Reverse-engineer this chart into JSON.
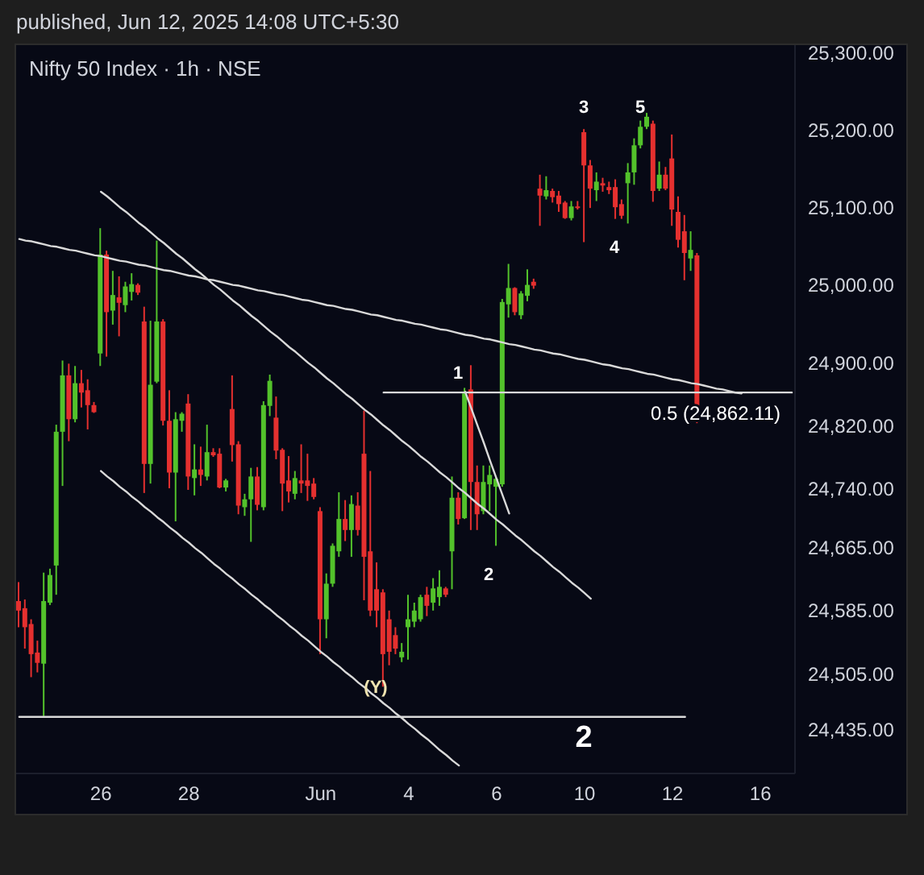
{
  "chart_data": {
    "type": "candlestick",
    "title": "Nifty 50 Index · 1h · NSE",
    "categories": [
      null,
      null,
      null,
      null,
      null,
      null,
      null,
      null,
      null,
      null,
      null,
      null,
      null,
      "26",
      null,
      null,
      null,
      null,
      null,
      null,
      null,
      null,
      null,
      null,
      null,
      null,
      null,
      "28",
      null,
      null,
      null,
      null,
      null,
      null,
      null,
      null,
      null,
      null,
      null,
      null,
      null,
      null,
      null,
      null,
      null,
      null,
      null,
      null,
      "Jun",
      null,
      null,
      null,
      null,
      null,
      null,
      null,
      null,
      null,
      null,
      null,
      null,
      null,
      "4",
      null,
      null,
      null,
      null,
      null,
      null,
      null,
      null,
      null,
      null,
      null,
      null,
      null,
      "6",
      null,
      null,
      null,
      null,
      null,
      null,
      null,
      null,
      null,
      null,
      null,
      null,
      null,
      "10",
      null,
      null,
      null,
      null,
      null,
      null,
      null,
      null,
      null,
      null,
      null,
      null,
      null,
      "12",
      null,
      null,
      null,
      null,
      null,
      null,
      null,
      null,
      null,
      null,
      null,
      null,
      null,
      "16",
      null,
      null,
      null,
      null,
      null
    ],
    "ohlc": [
      [
        24597,
        24621,
        24564,
        24585
      ],
      [
        24588,
        24599,
        24537,
        24564
      ],
      [
        24568,
        24574,
        24501,
        24530
      ],
      [
        24532,
        24547,
        24507,
        24519
      ],
      [
        24518,
        24633,
        24452,
        24597
      ],
      [
        24595,
        24638,
        24592,
        24630
      ],
      [
        24642,
        24821,
        24605,
        24812
      ],
      [
        24812,
        24903,
        24743,
        24884
      ],
      [
        24884,
        24899,
        24800,
        24828
      ],
      [
        24828,
        24896,
        24824,
        24874
      ],
      [
        24874,
        24891,
        24843,
        24862
      ],
      [
        24865,
        24879,
        24815,
        24846
      ],
      [
        24846,
        24850,
        24836,
        24837
      ],
      [
        24912,
        25073,
        24896,
        25039
      ],
      [
        25039,
        25044,
        24908,
        24965
      ],
      [
        24967,
        25018,
        24949,
        24987
      ],
      [
        24984,
        25011,
        24934,
        24977
      ],
      [
        24974,
        25004,
        24965,
        24998
      ],
      [
        24991,
        25015,
        24980,
        25001
      ],
      [
        25000,
        25002,
        24987,
        24990
      ],
      [
        24953,
        24972,
        24734,
        24771
      ],
      [
        24771,
        24954,
        24746,
        24872
      ],
      [
        24876,
        25057,
        24874,
        24953
      ],
      [
        24953,
        24956,
        24820,
        24826
      ],
      [
        24826,
        24865,
        24740,
        24760
      ],
      [
        24760,
        24837,
        24698,
        24828
      ],
      [
        24826,
        24837,
        24812,
        24835
      ],
      [
        24848,
        24860,
        24738,
        24755
      ],
      [
        24753,
        24796,
        24731,
        24764
      ],
      [
        24764,
        24793,
        24743,
        24757
      ],
      [
        24755,
        24821,
        24750,
        24786
      ],
      [
        24786,
        24791,
        24780,
        24782
      ],
      [
        24784,
        24791,
        24740,
        24741
      ],
      [
        24741,
        24752,
        24736,
        24750
      ],
      [
        24841,
        24884,
        24774,
        24795
      ],
      [
        24796,
        24800,
        24707,
        24718
      ],
      [
        24716,
        24733,
        24705,
        24726
      ],
      [
        24726,
        24766,
        24672,
        24755
      ],
      [
        24755,
        24767,
        24712,
        24719
      ],
      [
        24716,
        24851,
        24712,
        24846
      ],
      [
        24845,
        24885,
        24832,
        24877
      ],
      [
        24830,
        24857,
        24777,
        24788
      ],
      [
        24789,
        24791,
        24711,
        24746
      ],
      [
        24750,
        24781,
        24722,
        24736
      ],
      [
        24733,
        24762,
        24726,
        24753
      ],
      [
        24750,
        24796,
        24734,
        24746
      ],
      [
        24750,
        24784,
        24724,
        24743
      ],
      [
        24746,
        24753,
        24726,
        24729
      ],
      [
        24711,
        24716,
        24530,
        24574
      ],
      [
        24574,
        24632,
        24550,
        24619
      ],
      [
        24619,
        24670,
        24615,
        24667
      ],
      [
        24660,
        24735,
        24653,
        24701
      ],
      [
        24701,
        24725,
        24673,
        24687
      ],
      [
        24687,
        24731,
        24653,
        24720
      ],
      [
        24718,
        24735,
        24680,
        24687
      ],
      [
        24784,
        24839,
        24598,
        24653
      ],
      [
        24660,
        24762,
        24578,
        24585
      ],
      [
        24612,
        24646,
        24564,
        24585
      ],
      [
        24608,
        24612,
        24489,
        24530
      ],
      [
        24574,
        24585,
        24516,
        24533
      ],
      [
        24554,
        24564,
        24530,
        24537
      ],
      [
        24526,
        24544,
        24520,
        24533
      ],
      [
        24564,
        24605,
        24523,
        24574
      ],
      [
        24571,
        24595,
        24564,
        24585
      ],
      [
        24574,
        24605,
        24571,
        24602
      ],
      [
        24605,
        24615,
        24578,
        24591
      ],
      [
        24595,
        24626,
        24585,
        24613
      ],
      [
        24602,
        24636,
        24591,
        24615
      ],
      [
        24613,
        24615,
        24602,
        24605
      ],
      [
        24660,
        24755,
        24612,
        24728
      ],
      [
        24728,
        24735,
        24694,
        24701
      ],
      [
        24702,
        24868,
        24701,
        24861
      ],
      [
        24866,
        24897,
        24687,
        24748
      ],
      [
        24748,
        24769,
        24687,
        24707
      ],
      [
        24711,
        24769,
        24707,
        24748
      ],
      [
        24745,
        24769,
        24711,
        24757
      ],
      [
        24742,
        24755,
        24667,
        24752
      ],
      [
        24745,
        24982,
        24742,
        24978
      ],
      [
        24975,
        25027,
        24958,
        24996
      ],
      [
        24996,
        24997,
        24961,
        24965
      ],
      [
        24961,
        24992,
        24956,
        24989
      ],
      [
        24986,
        25020,
        24979,
        25000
      ],
      [
        25004,
        25008,
        24995,
        24999
      ],
      [
        25124,
        25142,
        25076,
        25115
      ],
      [
        25114,
        25140,
        25110,
        25122
      ],
      [
        25121,
        25124,
        25106,
        25113
      ],
      [
        25115,
        25121,
        25094,
        25104
      ],
      [
        25106,
        25108,
        25085,
        25086
      ],
      [
        25086,
        25108,
        25083,
        25101
      ],
      [
        25101,
        25108,
        25097,
        25099
      ],
      [
        25197,
        25201,
        25055,
        25154
      ],
      [
        25154,
        25161,
        25099,
        25124
      ],
      [
        25122,
        25145,
        25108,
        25133
      ],
      [
        25131,
        25138,
        25120,
        25128
      ],
      [
        25126,
        25133,
        25117,
        25122
      ],
      [
        25126,
        25136,
        25085,
        25100
      ],
      [
        25104,
        25110,
        25085,
        25089
      ],
      [
        25131,
        25157,
        25079,
        25145
      ],
      [
        25145,
        25189,
        25129,
        25180
      ],
      [
        25180,
        25212,
        25176,
        25204
      ],
      [
        25204,
        25222,
        25201,
        25217
      ],
      [
        25208,
        25212,
        25107,
        25121
      ],
      [
        25124,
        25159,
        25121,
        25142
      ],
      [
        25142,
        25152,
        25122,
        25124
      ],
      [
        25163,
        25194,
        25076,
        25097
      ],
      [
        25094,
        25114,
        25048,
        25058
      ],
      [
        25069,
        25090,
        25006,
        25041
      ],
      [
        25034,
        25069,
        25018,
        25045
      ],
      [
        25038,
        25041,
        24823,
        24844
      ],
      null,
      null,
      null,
      null,
      null,
      null,
      null,
      null,
      null,
      null,
      null,
      null,
      null,
      null,
      null
    ],
    "colors": [
      "#e5302f",
      "#e5302f",
      "#e5302f",
      "#e5302f",
      "#53c22b",
      "#53c22b",
      "#53c22b",
      "#53c22b",
      "#e5302f",
      "#53c22b",
      "#e5302f",
      "#e5302f",
      "#e5302f",
      "#53c22b",
      "#e5302f",
      "#53c22b",
      "#e5302f",
      "#53c22b",
      "#53c22b",
      "#e5302f",
      "#e5302f",
      "#53c22b",
      "#53c22b",
      "#e5302f",
      "#e5302f",
      "#53c22b",
      "#53c22b",
      "#e5302f",
      "#53c22b",
      "#e5302f",
      "#53c22b",
      "#e5302f",
      "#e5302f",
      "#53c22b",
      "#e5302f",
      "#e5302f",
      "#53c22b",
      "#53c22b",
      "#e5302f",
      "#53c22b",
      "#53c22b",
      "#e5302f",
      "#e5302f",
      "#e5302f",
      "#53c22b",
      "#e5302f",
      "#e5302f",
      "#e5302f",
      "#e5302f",
      "#53c22b",
      "#53c22b",
      "#53c22b",
      "#e5302f",
      "#53c22b",
      "#e5302f",
      "#e5302f",
      "#e5302f",
      "#e5302f",
      "#e5302f",
      "#e5302f",
      "#e5302f",
      "#53c22b",
      "#53c22b",
      "#53c22b",
      "#53c22b",
      "#e5302f",
      "#53c22b",
      "#53c22b",
      "#e5302f",
      "#53c22b",
      "#e5302f",
      "#53c22b",
      "#e5302f",
      "#e5302f",
      "#53c22b",
      "#53c22b",
      "#53c22b",
      "#53c22b",
      "#53c22b",
      "#e5302f",
      "#53c22b",
      "#53c22b",
      "#e5302f",
      "#e5302f",
      "#53c22b",
      "#e5302f",
      "#e5302f",
      "#e5302f",
      "#53c22b",
      "#e5302f",
      "#e5302f",
      "#e5302f",
      "#53c22b",
      "#e5302f",
      "#e5302f",
      "#e5302f",
      "#e5302f",
      "#53c22b",
      "#53c22b",
      "#53c22b",
      "#53c22b",
      "#e5302f",
      "#53c22b",
      "#e5302f",
      "#e5302f",
      "#e5302f",
      "#e5302f",
      "#53c22b",
      "#e5302f",
      null,
      null,
      null,
      null,
      null,
      null,
      null,
      null,
      null,
      null,
      null,
      null,
      null,
      null,
      null
    ],
    "series": [
      {
        "type": "line",
        "color": "#d9d9d9",
        "values": [
          25059,
          25057,
          25056,
          25054,
          25052,
          25050,
          25049,
          25047,
          25045,
          25044,
          25042,
          25040,
          25038,
          25037,
          25035,
          25033,
          25031,
          25030,
          25028,
          25026,
          25025,
          25023,
          25021,
          25019,
          25018,
          25016,
          25014,
          25012,
          25011,
          25009,
          25007,
          25006,
          25004,
          25002,
          25000,
          24999,
          24997,
          24995,
          24993,
          24992,
          24990,
          24988,
          24987,
          24985,
          24983,
          24981,
          24980,
          24978,
          24976,
          24974,
          24973,
          24971,
          24969,
          24968,
          24966,
          24964,
          24962,
          24961,
          24959,
          24957,
          24955,
          24954,
          24952,
          24950,
          24949,
          24947,
          24945,
          24943,
          24942,
          24940,
          24938,
          24936,
          24935,
          24933,
          24931,
          24930,
          24928,
          24926,
          24924,
          24923,
          24921,
          24919,
          24917,
          24916,
          24914,
          24912,
          24911,
          24909,
          24907,
          24905,
          24904,
          24902,
          24900,
          24898,
          24897,
          24895,
          24893,
          24892,
          24890,
          24888,
          24886,
          24885,
          24883,
          24881,
          24879,
          24878,
          24876,
          24874,
          24873,
          24871,
          24869,
          24867,
          24866,
          24864,
          24862,
          24861,
          null,
          null,
          null,
          null,
          null,
          null,
          null,
          null
        ]
      },
      {
        "type": "line",
        "color": "#d9d9d9",
        "values": [
          null,
          null,
          null,
          null,
          null,
          null,
          null,
          null,
          null,
          null,
          null,
          null,
          null,
          25120,
          25114,
          25107,
          25100,
          25094,
          25087,
          25080,
          25074,
          25067,
          25060,
          25054,
          25047,
          25040,
          25034,
          25027,
          25020,
          25014,
          25007,
          25000,
          24994,
          24987,
          24980,
          24974,
          24967,
          24960,
          24954,
          24947,
          24940,
          24934,
          24927,
          24920,
          24914,
          24907,
          24900,
          24894,
          24887,
          24880,
          24874,
          24867,
          24860,
          24854,
          24847,
          24840,
          24834,
          24827,
          24820,
          24814,
          24807,
          24800,
          24794,
          24787,
          24780,
          24774,
          24767,
          24760,
          24754,
          24747,
          24740,
          24734,
          24727,
          24720,
          24714,
          24707,
          24700,
          24694,
          24687,
          24680,
          24674,
          24667,
          24660,
          24654,
          24647,
          24640,
          24634,
          24627,
          24620,
          24614,
          24607,
          24600,
          null,
          null,
          null,
          null,
          null,
          null,
          null,
          null,
          null,
          null,
          null,
          null,
          null,
          null,
          null,
          null,
          null,
          null,
          null,
          null,
          null,
          null,
          null,
          null,
          null,
          null,
          null,
          null,
          null,
          null,
          null,
          null
        ]
      },
      {
        "type": "line",
        "color": "#d9d9d9",
        "values": [
          null,
          null,
          null,
          null,
          null,
          null,
          null,
          null,
          null,
          null,
          null,
          null,
          null,
          24762,
          24755,
          24749,
          24742,
          24736,
          24729,
          24723,
          24716,
          24710,
          24703,
          24697,
          24690,
          24684,
          24677,
          24671,
          24664,
          24658,
          24651,
          24644,
          24638,
          24631,
          24625,
          24618,
          24612,
          24605,
          24599,
          24592,
          24586,
          24579,
          24573,
          24566,
          24560,
          24553,
          24547,
          24540,
          24533,
          24527,
          24520,
          24514,
          24507,
          24501,
          24494,
          24488,
          24481,
          24475,
          24468,
          24462,
          24455,
          24449,
          24442,
          24436,
          24429,
          24423,
          24416,
          24409,
          24403,
          24396,
          24390,
          null,
          null,
          null,
          null,
          null,
          null,
          null,
          null,
          null,
          null,
          null,
          null,
          null,
          null,
          null,
          null,
          null,
          null,
          null,
          null,
          null,
          null,
          null,
          null,
          null,
          null,
          null,
          null,
          null,
          null,
          null,
          null,
          null,
          null,
          null,
          null,
          null,
          null,
          null,
          null,
          null,
          null,
          null,
          null,
          null,
          null,
          null,
          null,
          null,
          null,
          null,
          null,
          null
        ]
      },
      {
        "type": "line",
        "color": "#d9d9d9",
        "values": [
          null,
          null,
          null,
          null,
          null,
          null,
          null,
          null,
          null,
          null,
          null,
          null,
          null,
          null,
          null,
          null,
          null,
          null,
          null,
          null,
          null,
          null,
          null,
          null,
          null,
          null,
          null,
          null,
          null,
          null,
          null,
          null,
          null,
          null,
          null,
          null,
          null,
          null,
          null,
          null,
          null,
          null,
          null,
          null,
          null,
          null,
          null,
          null,
          null,
          null,
          null,
          null,
          null,
          null,
          null,
          null,
          null,
          null,
          null,
          null,
          null,
          null,
          null,
          null,
          null,
          null,
          null,
          null,
          null,
          null,
          null,
          24863,
          24841,
          24819,
          24797,
          24774,
          24752,
          24730,
          24708,
          null,
          null,
          null,
          null,
          null,
          null,
          null,
          null,
          null,
          null,
          null,
          null,
          null,
          null,
          null,
          null,
          null,
          null,
          null,
          null,
          null,
          null,
          null,
          null,
          null,
          null,
          null,
          null,
          null,
          null,
          null,
          null,
          null,
          null,
          null,
          null,
          null,
          null,
          null,
          null,
          null,
          null,
          null,
          null,
          null
        ]
      },
      {
        "type": "line",
        "color": "#d9d9d9",
        "name": "0.5 (24,862.11)",
        "values": [
          null,
          null,
          null,
          null,
          null,
          null,
          null,
          null,
          null,
          null,
          null,
          null,
          null,
          null,
          null,
          null,
          null,
          null,
          null,
          null,
          null,
          null,
          null,
          null,
          null,
          null,
          null,
          null,
          null,
          null,
          null,
          null,
          null,
          null,
          null,
          null,
          null,
          null,
          null,
          null,
          null,
          null,
          null,
          null,
          null,
          null,
          null,
          null,
          null,
          null,
          null,
          null,
          null,
          null,
          null,
          null,
          null,
          null,
          24862.11,
          24862.11,
          24862.11,
          24862.11,
          24862.11,
          24862.11,
          24862.11,
          24862.11,
          24862.11,
          24862.11,
          24862.11,
          24862.11,
          24862.11,
          24862.11,
          24862.11,
          24862.11,
          24862.11,
          24862.11,
          24862.11,
          24862.11,
          24862.11,
          24862.11,
          24862.11,
          24862.11,
          24862.11,
          24862.11,
          24862.11,
          24862.11,
          24862.11,
          24862.11,
          24862.11,
          24862.11,
          24862.11,
          24862.11,
          24862.11,
          24862.11,
          24862.11,
          24862.11,
          24862.11,
          24862.11,
          24862.11,
          24862.11,
          24862.11,
          24862.11,
          24862.11,
          24862.11,
          24862.11,
          24862.11,
          24862.11,
          24862.11,
          24862.11,
          24862.11,
          24862.11,
          24862.11,
          24862.11,
          24862.11,
          24862.11,
          24862.11,
          24862.11,
          24862.11,
          24862.11,
          24862.11,
          24862.11,
          24862.11,
          24862.11,
          24862.11
        ]
      },
      {
        "type": "line",
        "color": "#d9d9d9",
        "values": [
          24451,
          24451,
          24451,
          24451,
          24451,
          24451,
          24451,
          24451,
          24451,
          24451,
          24451,
          24451,
          24451,
          24451,
          24451,
          24451,
          24451,
          24451,
          24451,
          24451,
          24451,
          24451,
          24451,
          24451,
          24451,
          24451,
          24451,
          24451,
          24451,
          24451,
          24451,
          24451,
          24451,
          24451,
          24451,
          24451,
          24451,
          24451,
          24451,
          24451,
          24451,
          24451,
          24451,
          24451,
          24451,
          24451,
          24451,
          24451,
          24451,
          24451,
          24451,
          24451,
          24451,
          24451,
          24451,
          24451,
          24451,
          24451,
          24451,
          24451,
          24451,
          24451,
          24451,
          24451,
          24451,
          24451,
          24451,
          24451,
          24451,
          24451,
          24451,
          24451,
          24451,
          24451,
          24451,
          24451,
          24451,
          24451,
          24451,
          24451,
          24451,
          24451,
          24451,
          24451,
          24451,
          24451,
          24451,
          24451,
          24451,
          24451,
          24451,
          24451,
          24451,
          24451,
          24451,
          24451,
          24451,
          24451,
          24451,
          24451,
          24451,
          24451,
          24451,
          24451,
          24451,
          24451,
          24451,
          null,
          null,
          null,
          null,
          null,
          null,
          null,
          null,
          null,
          null,
          null,
          null,
          null,
          null,
          null,
          null,
          null
        ]
      }
    ],
    "ylim": [
      24380,
      25310
    ],
    "yticks": [
      {
        "value": 24435,
        "label": "24,435.00"
      },
      {
        "value": 24505,
        "label": "24,505.00"
      },
      {
        "value": 24585,
        "label": "24,585.00"
      },
      {
        "value": 24665,
        "label": "24,665.00"
      },
      {
        "value": 24740,
        "label": "24,740.00"
      },
      {
        "value": 24820,
        "label": "24,820.00"
      },
      {
        "value": 24900,
        "label": "24,900.00"
      },
      {
        "value": 25000,
        "label": "25,000.00"
      },
      {
        "value": 25100,
        "label": "25,100.00"
      },
      {
        "value": 25200,
        "label": "25,200.00"
      },
      {
        "value": 25300,
        "label": "25,300.00"
      }
    ],
    "log": "y",
    "grid": false,
    "legend": false,
    "marker": "none",
    "annotations": [
      "published, Jun 12, 2025 14:08 UTC+5:30",
      "1",
      "2",
      "3",
      "4",
      "5",
      "(Y)",
      "2"
    ]
  }
}
